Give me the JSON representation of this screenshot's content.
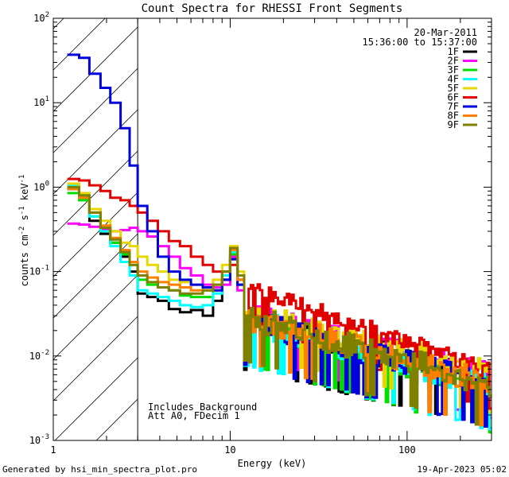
{
  "chart_data": {
    "type": "line",
    "title": "Count Spectra for RHESSI Front Segments",
    "xlabel": "Energy (keV)",
    "ylabel_parts": {
      "prefix": "counts cm",
      "sup1": "-2",
      "mid1": " s",
      "sup2": "-1",
      "mid2": " keV",
      "sup3": "-1"
    },
    "x_scale": "log",
    "y_scale": "log",
    "xlim": [
      1,
      300
    ],
    "ylim": [
      0.001,
      100
    ],
    "x_ticks": [
      {
        "value": 1,
        "label": "1"
      },
      {
        "value": 10,
        "label": "10"
      },
      {
        "value": 100,
        "label": "100"
      }
    ],
    "y_ticks": [
      {
        "value": 0.001,
        "base": "10",
        "exp": "-3"
      },
      {
        "value": 0.01,
        "base": "10",
        "exp": "-2"
      },
      {
        "value": 0.1,
        "base": "10",
        "exp": "-1"
      },
      {
        "value": 1,
        "base": "10",
        "exp": "0"
      },
      {
        "value": 10,
        "base": "10",
        "exp": "1"
      },
      {
        "value": 100,
        "base": "10",
        "exp": "2"
      }
    ],
    "hatched_region": {
      "x_min": 1,
      "x_max": 3
    },
    "annotations": {
      "date": "20-Mar-2011",
      "time_range": "15:36:00 to 15:37:00"
    },
    "notes": [
      "Includes Background",
      "Att A0, FDecim 1"
    ],
    "series": [
      {
        "name": "1F",
        "color": "#000000"
      },
      {
        "name": "2F",
        "color": "#ff00ff"
      },
      {
        "name": "3F",
        "color": "#00dd00"
      },
      {
        "name": "4F",
        "color": "#00ffff"
      },
      {
        "name": "5F",
        "color": "#e6d700"
      },
      {
        "name": "6F",
        "color": "#e00000"
      },
      {
        "name": "7F",
        "color": "#0000dd"
      },
      {
        "name": "8F",
        "color": "#ff7f00"
      },
      {
        "name": "9F",
        "color": "#7f7f00"
      }
    ],
    "low_energy_edges": [
      1.2,
      1.4,
      1.6,
      1.85,
      2.1,
      2.4,
      2.7,
      3.0,
      3.4,
      3.9,
      4.5,
      5.2,
      6.0,
      7.0,
      8.0,
      9.0,
      10.0,
      11.0,
      12.0
    ],
    "low_energy_values": {
      "1F": [
        0.95,
        0.75,
        0.4,
        0.28,
        0.22,
        0.15,
        0.1,
        0.055,
        0.05,
        0.045,
        0.036,
        0.033,
        0.035,
        0.03,
        0.045,
        0.08,
        0.15,
        0.09
      ],
      "2F": [
        0.37,
        0.36,
        0.34,
        0.32,
        0.3,
        0.31,
        0.33,
        0.3,
        0.26,
        0.2,
        0.15,
        0.11,
        0.09,
        0.07,
        0.065,
        0.07,
        0.15,
        0.06
      ],
      "3F": [
        0.85,
        0.7,
        0.45,
        0.3,
        0.22,
        0.16,
        0.12,
        0.08,
        0.07,
        0.065,
        0.06,
        0.052,
        0.05,
        0.05,
        0.06,
        0.09,
        0.16,
        0.07
      ],
      "4F": [
        1.05,
        0.8,
        0.45,
        0.3,
        0.2,
        0.13,
        0.09,
        0.06,
        0.055,
        0.05,
        0.045,
        0.04,
        0.038,
        0.04,
        0.055,
        0.09,
        0.17,
        0.08
      ],
      "5F": [
        1.1,
        0.85,
        0.55,
        0.4,
        0.3,
        0.22,
        0.2,
        0.15,
        0.12,
        0.1,
        0.08,
        0.075,
        0.07,
        0.06,
        0.08,
        0.12,
        0.2,
        0.1
      ],
      "6F": [
        1.25,
        1.2,
        1.05,
        0.9,
        0.75,
        0.7,
        0.6,
        0.5,
        0.4,
        0.3,
        0.23,
        0.2,
        0.15,
        0.12,
        0.1,
        0.1,
        0.12,
        0.08
      ],
      "7F": [
        37,
        34,
        22,
        15,
        10,
        5,
        1.8,
        0.6,
        0.3,
        0.15,
        0.1,
        0.08,
        0.07,
        0.065,
        0.06,
        0.08,
        0.14,
        0.07
      ],
      "8F": [
        0.95,
        0.75,
        0.5,
        0.35,
        0.25,
        0.18,
        0.13,
        0.1,
        0.085,
        0.075,
        0.07,
        0.065,
        0.06,
        0.06,
        0.07,
        0.1,
        0.18,
        0.08
      ],
      "9F": [
        1.0,
        0.8,
        0.5,
        0.33,
        0.24,
        0.17,
        0.12,
        0.09,
        0.075,
        0.065,
        0.06,
        0.055,
        0.055,
        0.06,
        0.07,
        0.1,
        0.19,
        0.09
      ]
    },
    "high_energy": {
      "x_start": 12,
      "x_end": 300,
      "n_bins": 110,
      "start_values": {
        "1F": 0.025,
        "2F": 0.03,
        "3F": 0.026,
        "4F": 0.026,
        "5F": 0.032,
        "6F": 0.07,
        "7F": 0.025,
        "8F": 0.028,
        "9F": 0.028
      },
      "end_values": {
        "1F": 0.005,
        "2F": 0.006,
        "3F": 0.004,
        "4F": 0.0045,
        "5F": 0.0065,
        "6F": 0.0065,
        "7F": 0.0045,
        "8F": 0.0045,
        "9F": 0.0045
      },
      "scatter": {
        "1F": 0.5,
        "2F": 0.4,
        "3F": 0.4,
        "4F": 0.45,
        "5F": 0.35,
        "6F": 0.25,
        "7F": 0.4,
        "8F": 0.4,
        "9F": 0.4
      }
    }
  },
  "footer": {
    "generated_by": "Generated by hsi_min_spectra_plot.pro",
    "timestamp": "19-Apr-2023 05:02"
  }
}
